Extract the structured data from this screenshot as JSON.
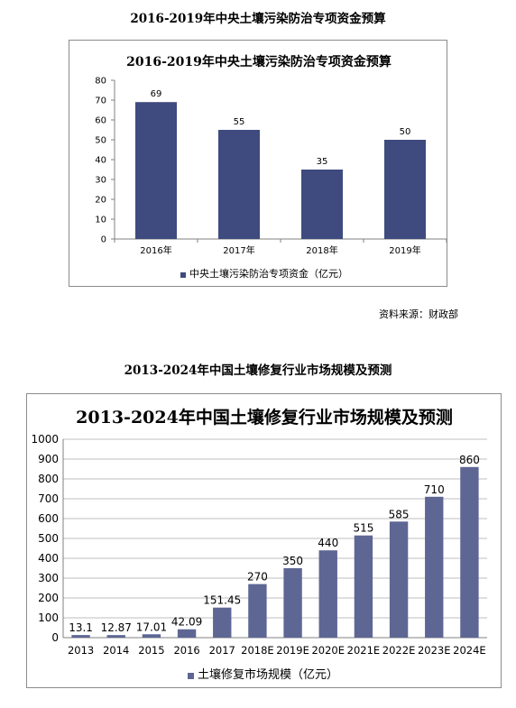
{
  "charts": [
    {
      "heading": "2016-2019年中央土壤污染防治专项资金预算",
      "source": "资料来源：财政部",
      "chart_data": {
        "type": "bar",
        "title": "2016-2019年中央土壤污染防治专项资金预算",
        "categories": [
          "2016年",
          "2017年",
          "2018年",
          "2019年"
        ],
        "series": [
          {
            "name": "中央土壤污染防治专项资金（亿元）",
            "values": [
              69,
              55,
              35,
              50
            ]
          }
        ],
        "data_labels": [
          "69",
          "55",
          "35",
          "50"
        ],
        "ylim": [
          0,
          80
        ],
        "yticks": [
          0,
          10,
          20,
          30,
          40,
          50,
          60,
          70,
          80
        ],
        "grid": false,
        "legend": "bottom",
        "colors": {
          "bar": "#3f4b7e"
        }
      }
    },
    {
      "heading": "2013-2024年中国土壤修复行业市场规模及预测",
      "chart_data": {
        "type": "bar",
        "title": "2013-2024年中国土壤修复行业市场规模及预测",
        "categories": [
          "2013",
          "2014",
          "2015",
          "2016",
          "2017",
          "2018E",
          "2019E",
          "2020E",
          "2021E",
          "2022E",
          "2023E",
          "2024E"
        ],
        "series": [
          {
            "name": "土壤修复市场规模（亿元）",
            "values": [
              13.1,
              12.87,
              17.01,
              42.09,
              151.45,
              270,
              350,
              440,
              515,
              585,
              710,
              860
            ]
          }
        ],
        "data_labels": [
          "13.1",
          "12.87",
          "17.01",
          "42.09",
          "151.45",
          "270",
          "350",
          "440",
          "515",
          "585",
          "710",
          "860"
        ],
        "ylim": [
          0,
          1000
        ],
        "yticks": [
          0,
          100,
          200,
          300,
          400,
          500,
          600,
          700,
          800,
          900,
          1000
        ],
        "grid": true,
        "legend": "bottom",
        "colors": {
          "bar": "#5e6694"
        }
      }
    }
  ]
}
